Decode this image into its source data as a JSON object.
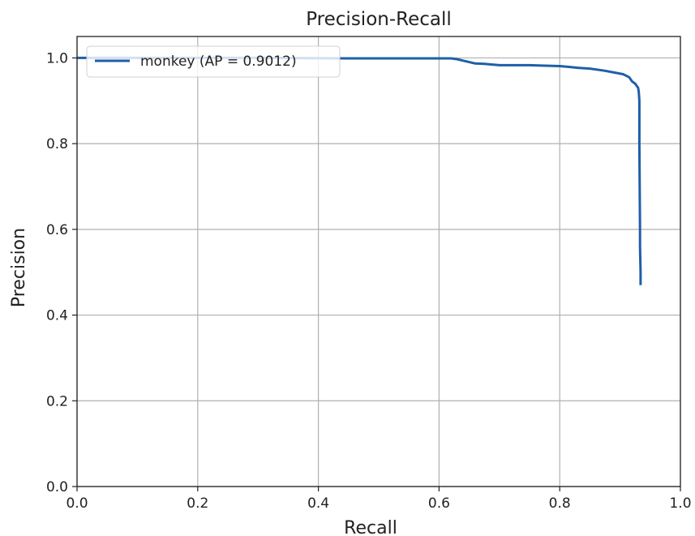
{
  "chart_data": {
    "type": "line",
    "title": "Precision-Recall",
    "xlabel": "Recall",
    "ylabel": "Precision",
    "xlim": [
      0.0,
      1.0
    ],
    "ylim": [
      0.0,
      1.05
    ],
    "xticks": [
      "0.0",
      "0.2",
      "0.4",
      "0.6",
      "0.8",
      "1.0"
    ],
    "yticks": [
      "0.0",
      "0.2",
      "0.4",
      "0.6",
      "0.8",
      "1.0"
    ],
    "grid": true,
    "legend_position": "top-left",
    "series": [
      {
        "name": "monkey (AP = 0.9012)",
        "color": "#1f5fa8",
        "x": [
          0.0,
          0.15,
          0.3,
          0.45,
          0.55,
          0.62,
          0.63,
          0.645,
          0.66,
          0.675,
          0.7,
          0.72,
          0.75,
          0.77,
          0.8,
          0.815,
          0.83,
          0.85,
          0.865,
          0.875,
          0.89,
          0.905,
          0.915,
          0.92,
          0.925,
          0.93,
          0.931,
          0.932,
          0.932,
          0.933,
          0.933,
          0.934,
          0.934
        ],
        "y": [
          1.0,
          1.0,
          1.0,
          0.999,
          0.999,
          0.999,
          0.997,
          0.992,
          0.987,
          0.986,
          0.983,
          0.983,
          0.983,
          0.982,
          0.981,
          0.979,
          0.977,
          0.975,
          0.972,
          0.97,
          0.966,
          0.962,
          0.955,
          0.945,
          0.94,
          0.93,
          0.92,
          0.9,
          0.8,
          0.6,
          0.56,
          0.5,
          0.47
        ]
      }
    ]
  }
}
